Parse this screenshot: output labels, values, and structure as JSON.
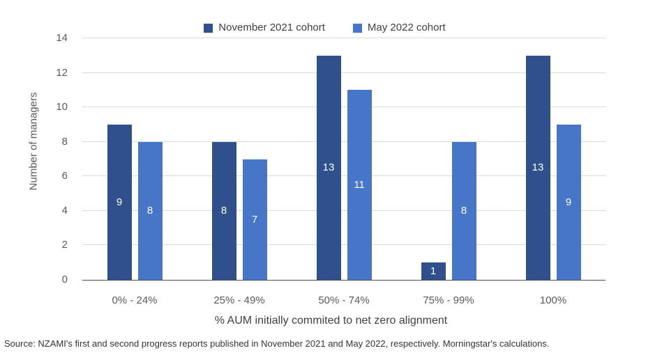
{
  "legend": {
    "items": [
      {
        "label": "November 2021 cohort",
        "color": "#2F508D"
      },
      {
        "label": "May 2022 cohort",
        "color": "#4776C9"
      }
    ]
  },
  "chart_data": {
    "type": "bar",
    "title": "",
    "categories": [
      "0% - 24%",
      "25% - 49%",
      "50% - 74%",
      "75% - 99%",
      "100%"
    ],
    "series": [
      {
        "name": "November 2021 cohort",
        "color": "#2F508D",
        "values": [
          9,
          8,
          13,
          1,
          13
        ]
      },
      {
        "name": "May 2022 cohort",
        "color": "#4776C9",
        "values": [
          8,
          7,
          11,
          8,
          9
        ]
      }
    ],
    "xlabel": "% AUM initially commited to net zero alignment",
    "ylabel": "Number of managers",
    "ylim": [
      0,
      14
    ],
    "yticks": [
      0,
      2,
      4,
      6,
      8,
      10,
      12,
      14
    ],
    "grid": true,
    "legend_position": "top",
    "bar_value_labels": true,
    "gridline_color": "#d9d9d9",
    "axis_line_color": "#4a4a4a"
  },
  "source": "Source: NZAMI's first and second progress reports published in November 2021 and May 2022, respectively. Morningstar's calculations."
}
